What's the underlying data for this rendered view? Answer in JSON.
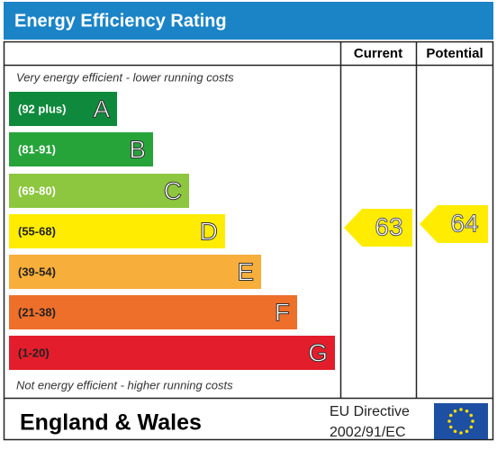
{
  "title": "Energy Efficiency Rating",
  "headers": {
    "current": "Current",
    "potential": "Potential"
  },
  "top_note": "Very energy efficient - lower running costs",
  "bottom_note": "Not energy efficient - higher running costs",
  "bands": [
    {
      "range": "(92 plus)",
      "letter": "A",
      "color": "#0f8a3c"
    },
    {
      "range": "(81-91)",
      "letter": "B",
      "color": "#26a43a"
    },
    {
      "range": "(69-80)",
      "letter": "C",
      "color": "#8dc63f"
    },
    {
      "range": "(55-68)",
      "letter": "D",
      "color": "#ffec00"
    },
    {
      "range": "(39-54)",
      "letter": "E",
      "color": "#f7ae3a"
    },
    {
      "range": "(21-38)",
      "letter": "F",
      "color": "#ee6f2a"
    },
    {
      "range": "(1-20)",
      "letter": "G",
      "color": "#e31d2b"
    }
  ],
  "current": 63,
  "potential": 64,
  "footer": {
    "region": "England & Wales",
    "directive_line1": "EU Directive",
    "directive_line2": "2002/91/EC"
  }
}
